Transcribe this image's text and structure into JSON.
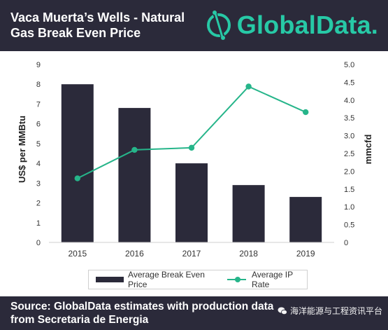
{
  "header": {
    "title_line1": "Vaca Muerta’s Wells - Natural",
    "title_line2": "Gas Break Even Price",
    "logo_text": "GlobalData."
  },
  "colors": {
    "header_bg": "#2b2a3a",
    "bar": "#2b2a3a",
    "line": "#26b58a",
    "logo": "#27c9a6"
  },
  "chart_data": {
    "type": "bar",
    "categories": [
      "2015",
      "2016",
      "2017",
      "2018",
      "2019"
    ],
    "series": [
      {
        "name": "Average Break Even Price",
        "type": "bar",
        "axis": "left",
        "values": [
          8.0,
          6.8,
          4.0,
          2.9,
          2.3
        ]
      },
      {
        "name": "Average IP Rate",
        "type": "line",
        "axis": "right",
        "values": [
          1.8,
          2.6,
          2.66,
          4.38,
          3.66
        ]
      }
    ],
    "ylabel": "US$ per MMBtu",
    "y2label": "mmcfd",
    "ylim": [
      0,
      9
    ],
    "y2lim": [
      0,
      5
    ],
    "yticks": [
      "0",
      "1",
      "2",
      "3",
      "4",
      "5",
      "6",
      "7",
      "8",
      "9"
    ],
    "y2ticks": [
      "0",
      "0.5",
      "1.0",
      "1.5",
      "2.0",
      "2.5",
      "3.0",
      "3.5",
      "4.0",
      "4.5",
      "5.0"
    ],
    "grid": false,
    "legend_position": "bottom"
  },
  "footer": {
    "source_line1": "Source: GlobalData estimates with production data",
    "source_line2": "from Secretaria de Energia",
    "watermark": "海洋能源与工程资讯平台"
  }
}
